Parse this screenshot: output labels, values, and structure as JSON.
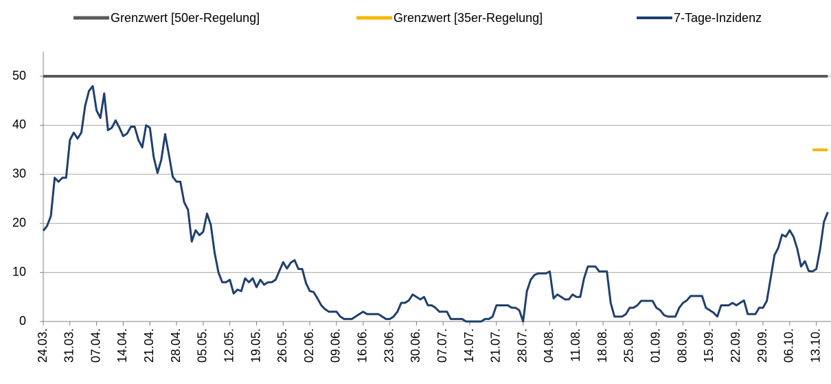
{
  "chart_data": {
    "type": "line",
    "categories": [
      "24.03.",
      null,
      null,
      null,
      null,
      null,
      null,
      "31.03.",
      null,
      null,
      null,
      null,
      null,
      null,
      "07.04.",
      null,
      null,
      null,
      null,
      null,
      null,
      "14.04.",
      null,
      null,
      null,
      null,
      null,
      null,
      "21.04.",
      null,
      null,
      null,
      null,
      null,
      null,
      "28.04.",
      null,
      null,
      null,
      null,
      null,
      null,
      "05.05.",
      null,
      null,
      null,
      null,
      null,
      null,
      "12.05.",
      null,
      null,
      null,
      null,
      null,
      null,
      "19.05.",
      null,
      null,
      null,
      null,
      null,
      null,
      "26.05.",
      null,
      null,
      null,
      null,
      null,
      null,
      "02.06.",
      null,
      null,
      null,
      null,
      null,
      null,
      "09.06.",
      null,
      null,
      null,
      null,
      null,
      null,
      "16.06.",
      null,
      null,
      null,
      null,
      null,
      null,
      "23.06.",
      null,
      null,
      null,
      null,
      null,
      null,
      "30.06.",
      null,
      null,
      null,
      null,
      null,
      null,
      "07.07.",
      null,
      null,
      null,
      null,
      null,
      null,
      "14.07.",
      null,
      null,
      null,
      null,
      null,
      null,
      "21.07.",
      null,
      null,
      null,
      null,
      null,
      null,
      "28.07.",
      null,
      null,
      null,
      null,
      null,
      null,
      "04.08.",
      null,
      null,
      null,
      null,
      null,
      null,
      "11.08.",
      null,
      null,
      null,
      null,
      null,
      null,
      "18.08.",
      null,
      null,
      null,
      null,
      null,
      null,
      "25.08.",
      null,
      null,
      null,
      null,
      null,
      null,
      "01.09.",
      null,
      null,
      null,
      null,
      null,
      null,
      "08.09.",
      null,
      null,
      null,
      null,
      null,
      null,
      "15.09.",
      null,
      null,
      null,
      null,
      null,
      null,
      "22.09.",
      null,
      null,
      null,
      null,
      null,
      null,
      "29.09.",
      null,
      null,
      null,
      null,
      null,
      null,
      "06.10.",
      null,
      null,
      null,
      null,
      null,
      null,
      "13.10.",
      null,
      null,
      null
    ],
    "series": [
      {
        "name": "Grenzwert [50er-Regelung]",
        "color": "#595959",
        "width": 4,
        "values": [
          50,
          50,
          50,
          50,
          50,
          50,
          50,
          50,
          50,
          50,
          50,
          50,
          50,
          50,
          50,
          50,
          50,
          50,
          50,
          50,
          50,
          50,
          50,
          50,
          50,
          50,
          50,
          50,
          50,
          50,
          50,
          50,
          50,
          50,
          50,
          50,
          50,
          50,
          50,
          50,
          50,
          50,
          50,
          50,
          50,
          50,
          50,
          50,
          50,
          50,
          50,
          50,
          50,
          50,
          50,
          50,
          50,
          50,
          50,
          50,
          50,
          50,
          50,
          50,
          50,
          50,
          50,
          50,
          50,
          50,
          50,
          50,
          50,
          50,
          50,
          50,
          50,
          50,
          50,
          50,
          50,
          50,
          50,
          50,
          50,
          50,
          50,
          50,
          50,
          50,
          50,
          50,
          50,
          50,
          50,
          50,
          50,
          50,
          50,
          50,
          50,
          50,
          50,
          50,
          50,
          50,
          50,
          50,
          50,
          50,
          50,
          50,
          50,
          50,
          50,
          50,
          50,
          50,
          50,
          50,
          50,
          50,
          50,
          50,
          50,
          50,
          50,
          50,
          50,
          50,
          50,
          50,
          50,
          50,
          50,
          50,
          50,
          50,
          50,
          50,
          50,
          50,
          50,
          50,
          50,
          50,
          50,
          50,
          50,
          50,
          50,
          50,
          50,
          50,
          50,
          50,
          50,
          50,
          50,
          50,
          50,
          50,
          50,
          50,
          50,
          50,
          50,
          50,
          50,
          50,
          50,
          50,
          50,
          50,
          50,
          50,
          50,
          50,
          50,
          50,
          50,
          50,
          50,
          50,
          50,
          50,
          50,
          50,
          50,
          50,
          50,
          50,
          50,
          50,
          50,
          50,
          50,
          50,
          50,
          50,
          50,
          50,
          50,
          50,
          50,
          50,
          50
        ]
      },
      {
        "name": "Grenzwert [35er-Regelung]",
        "color": "#f5b800",
        "width": 4,
        "values": [
          null,
          null,
          null,
          null,
          null,
          null,
          null,
          null,
          null,
          null,
          null,
          null,
          null,
          null,
          null,
          null,
          null,
          null,
          null,
          null,
          null,
          null,
          null,
          null,
          null,
          null,
          null,
          null,
          null,
          null,
          null,
          null,
          null,
          null,
          null,
          null,
          null,
          null,
          null,
          null,
          null,
          null,
          null,
          null,
          null,
          null,
          null,
          null,
          null,
          null,
          null,
          null,
          null,
          null,
          null,
          null,
          null,
          null,
          null,
          null,
          null,
          null,
          null,
          null,
          null,
          null,
          null,
          null,
          null,
          null,
          null,
          null,
          null,
          null,
          null,
          null,
          null,
          null,
          null,
          null,
          null,
          null,
          null,
          null,
          null,
          null,
          null,
          null,
          null,
          null,
          null,
          null,
          null,
          null,
          null,
          null,
          null,
          null,
          null,
          null,
          null,
          null,
          null,
          null,
          null,
          null,
          null,
          null,
          null,
          null,
          null,
          null,
          null,
          null,
          null,
          null,
          null,
          null,
          null,
          null,
          null,
          null,
          null,
          null,
          null,
          null,
          null,
          null,
          null,
          null,
          null,
          null,
          null,
          null,
          null,
          null,
          null,
          null,
          null,
          null,
          null,
          null,
          null,
          null,
          null,
          null,
          null,
          null,
          null,
          null,
          null,
          null,
          null,
          null,
          null,
          null,
          null,
          null,
          null,
          null,
          null,
          null,
          null,
          null,
          null,
          null,
          null,
          null,
          null,
          null,
          null,
          null,
          null,
          null,
          null,
          null,
          null,
          null,
          null,
          null,
          null,
          null,
          null,
          null,
          null,
          null,
          null,
          null,
          null,
          null,
          null,
          null,
          null,
          null,
          null,
          null,
          null,
          null,
          null,
          null,
          null,
          null,
          35,
          35,
          35,
          35,
          35
        ]
      },
      {
        "name": "7-Tage-Inzidenz",
        "color": "#1f3f6e",
        "width": 3,
        "values": [
          18.5,
          19.5,
          21.5,
          29.3,
          28.5,
          29.3,
          29.3,
          37,
          38.5,
          37.3,
          38.5,
          44,
          47,
          48,
          43,
          41.5,
          46.5,
          39,
          39.5,
          41,
          39.5,
          37.8,
          38.3,
          39.7,
          39.7,
          37,
          35.5,
          40,
          39.5,
          33.5,
          30.3,
          33,
          38.2,
          34,
          29.5,
          28.5,
          28.5,
          24.3,
          22.8,
          16.3,
          18.6,
          17.6,
          18.3,
          22,
          19.7,
          14,
          10,
          8,
          8,
          8.5,
          5.7,
          6.5,
          6.2,
          8.8,
          8,
          8.8,
          7,
          8.5,
          7.5,
          8,
          8,
          8.5,
          10.3,
          12.1,
          10.8,
          12,
          12.5,
          10.7,
          10.7,
          7.8,
          6.2,
          6,
          4.7,
          3.3,
          2.5,
          2,
          2,
          2,
          1,
          0.5,
          0.5,
          0.5,
          1,
          1.5,
          2,
          1.5,
          1.5,
          1.5,
          1.5,
          1,
          0.5,
          0.5,
          1,
          2,
          3.8,
          3.8,
          4.3,
          5.5,
          5,
          4.5,
          5,
          3.3,
          3.3,
          2.8,
          2,
          2,
          2,
          0.5,
          0.5,
          0.5,
          0.5,
          0,
          0,
          0,
          0,
          0,
          0.5,
          0.5,
          1,
          3.3,
          3.3,
          3.3,
          3.3,
          2.8,
          2.8,
          2.3,
          0,
          6.2,
          8.5,
          9.5,
          9.8,
          9.8,
          9.8,
          10.2,
          4.7,
          5.5,
          5,
          4.5,
          4.5,
          5.5,
          5,
          5,
          8.8,
          11.2,
          11.2,
          11.2,
          10.2,
          10.2,
          10.2,
          3.8,
          1,
          1,
          1,
          1.5,
          2.8,
          2.8,
          3.3,
          4.2,
          4.2,
          4.2,
          4.2,
          2.8,
          2.3,
          1.3,
          1,
          1,
          1,
          2.8,
          3.8,
          4.3,
          5.2,
          5.2,
          5.2,
          5.2,
          2.8,
          2.3,
          1.8,
          1,
          3.3,
          3.3,
          3.3,
          3.8,
          3.3,
          3.8,
          4.3,
          1.5,
          1.5,
          1.5,
          2.8,
          2.8,
          4.2,
          8.8,
          13.5,
          15,
          17.7,
          17.3,
          18.6,
          17.3,
          14.8,
          11.2,
          12.3,
          10.3,
          10.2,
          10.7,
          14.8,
          20.3,
          22.3
        ]
      }
    ],
    "ylim": [
      0,
      55
    ],
    "yticks": [
      0,
      10,
      20,
      30,
      40,
      50
    ],
    "grid": true,
    "legend": "top"
  }
}
